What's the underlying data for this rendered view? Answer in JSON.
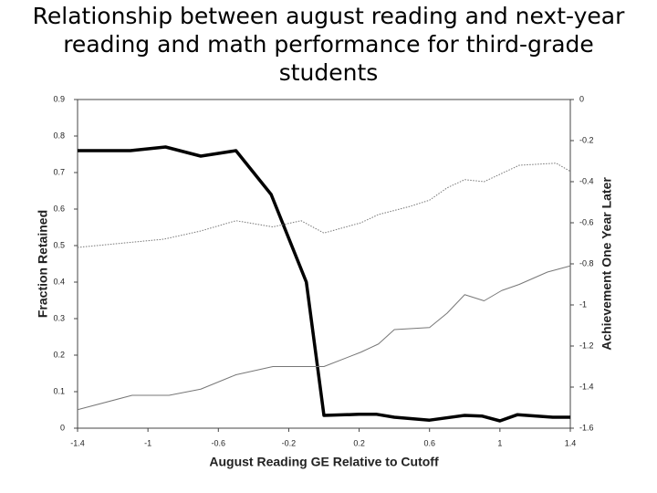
{
  "chart_data": {
    "type": "line",
    "title": "Relationship between august reading and next-year reading and math performance for third-grade students",
    "x_label": "August Reading GE Relative to Cutoff",
    "y_label": "Fraction Retained",
    "y2_label": "Achievement One Year Later",
    "xlim": [
      -1.4,
      1.4
    ],
    "xticks": [
      -1.4,
      -1,
      -0.6,
      -0.2,
      0.2,
      0.6,
      1,
      1.4
    ],
    "ylim": [
      0,
      0.9
    ],
    "yticks": [
      0,
      0.1,
      0.2,
      0.3,
      0.4,
      0.5,
      0.6,
      0.7,
      0.8,
      0.9
    ],
    "y2lim": [
      -1.6,
      0
    ],
    "y2ticks": [
      0,
      -0.2,
      -0.4,
      -0.6,
      -0.8,
      -1,
      -1.2,
      -1.4,
      -1.6
    ],
    "series": [
      {
        "color": "#000000",
        "style": "solid",
        "x": [
          -1.4,
          -1.1,
          -0.9,
          -0.7,
          -0.5,
          -0.3,
          -0.1,
          0,
          0.2,
          0.3,
          0.4,
          0.6,
          0.8,
          0.9,
          1,
          1.1,
          1.3,
          1.4
        ],
        "values": [
          0.76,
          0.76,
          0.77,
          0.745,
          0.76,
          0.64,
          0.4,
          0.035,
          0.038,
          0.038,
          0.03,
          0.022,
          0.035,
          0.033,
          0.02,
          0.037,
          0.03,
          0.03
        ]
      },
      {
        "color": "#777777",
        "style": "dotted",
        "axis": "y2",
        "x": [
          -1.4,
          -0.91,
          -0.7,
          -0.5,
          -0.29,
          -0.13,
          0,
          0.21,
          0.31,
          0.49,
          0.6,
          0.7,
          0.8,
          0.91,
          1.01,
          1.11,
          1.32,
          1.4
        ],
        "values": [
          -0.72,
          -0.68,
          -0.64,
          -0.59,
          -0.62,
          -0.59,
          -0.65,
          -0.6,
          -0.56,
          -0.52,
          -0.49,
          -0.43,
          -0.39,
          -0.4,
          -0.36,
          -0.32,
          -0.31,
          -0.35
        ]
      },
      {
        "color": "#777777",
        "style": "thin",
        "axis": "y2",
        "x": [
          -1.4,
          -1.09,
          -0.88,
          -0.7,
          -0.5,
          -0.29,
          0,
          0.21,
          0.31,
          0.4,
          0.6,
          0.7,
          0.8,
          0.91,
          1.01,
          1.11,
          1.27,
          1.4
        ],
        "values": [
          -1.51,
          -1.44,
          -1.44,
          -1.41,
          -1.34,
          -1.3,
          -1.3,
          -1.23,
          -1.19,
          -1.12,
          -1.11,
          -1.04,
          -0.95,
          -0.98,
          -0.93,
          -0.9,
          -0.84,
          -0.81
        ]
      }
    ]
  }
}
